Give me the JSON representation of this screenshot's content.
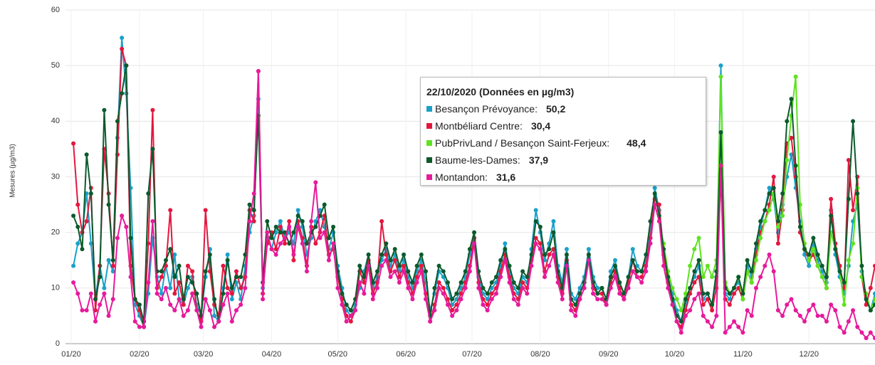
{
  "chart_data": {
    "type": "line",
    "y_label": "Mesures (µg/m3)",
    "xlim": [
      0,
      365
    ],
    "ylim": [
      0,
      60
    ],
    "grid": true,
    "xticks": [
      {
        "value": 0,
        "label": "01/20"
      },
      {
        "value": 31,
        "label": "02/20"
      },
      {
        "value": 60,
        "label": "03/20"
      },
      {
        "value": 91,
        "label": "04/20"
      },
      {
        "value": 121,
        "label": "05/20"
      },
      {
        "value": 152,
        "label": "06/20"
      },
      {
        "value": 182,
        "label": "07/20"
      },
      {
        "value": 213,
        "label": "08/20"
      },
      {
        "value": 244,
        "label": "09/20"
      },
      {
        "value": 274,
        "label": "10/20"
      },
      {
        "value": 305,
        "label": "11/20"
      },
      {
        "value": 335,
        "label": "12/20"
      }
    ],
    "yticks": [
      0,
      10,
      20,
      30,
      40,
      50,
      60
    ],
    "x": [
      1,
      3,
      5,
      7,
      9,
      11,
      13,
      15,
      17,
      19,
      21,
      23,
      25,
      27,
      29,
      31,
      33,
      35,
      37,
      39,
      41,
      43,
      45,
      47,
      49,
      51,
      53,
      55,
      57,
      59,
      61,
      63,
      65,
      67,
      69,
      71,
      73,
      75,
      77,
      79,
      81,
      83,
      85,
      87,
      89,
      91,
      93,
      95,
      97,
      99,
      101,
      103,
      105,
      107,
      109,
      111,
      113,
      115,
      117,
      119,
      121,
      123,
      125,
      127,
      129,
      131,
      133,
      135,
      137,
      139,
      141,
      143,
      145,
      147,
      149,
      151,
      153,
      155,
      157,
      159,
      161,
      163,
      165,
      167,
      169,
      171,
      173,
      175,
      177,
      179,
      181,
      183,
      185,
      187,
      189,
      191,
      193,
      195,
      197,
      199,
      201,
      203,
      205,
      207,
      209,
      211,
      213,
      215,
      217,
      219,
      221,
      223,
      225,
      227,
      229,
      231,
      233,
      235,
      237,
      239,
      241,
      243,
      245,
      247,
      249,
      251,
      253,
      255,
      257,
      259,
      261,
      263,
      265,
      267,
      269,
      271,
      273,
      275,
      277,
      279,
      281,
      283,
      285,
      287,
      289,
      291,
      293,
      295,
      297,
      299,
      301,
      303,
      305,
      307,
      309,
      311,
      313,
      315,
      317,
      319,
      321,
      323,
      325,
      327,
      329,
      331,
      333,
      335,
      337,
      339,
      341,
      343,
      345,
      347,
      349,
      351,
      353,
      355,
      357,
      359,
      361,
      363,
      365
    ],
    "series": [
      {
        "color": "#1aa1c9",
        "values": [
          14,
          18,
          20,
          27,
          18,
          8,
          14,
          10,
          15,
          13,
          37,
          55,
          45,
          28,
          7,
          5,
          3,
          9,
          19,
          12,
          9,
          14,
          10,
          16,
          8,
          7,
          10,
          12,
          7,
          5,
          12,
          17,
          5,
          4,
          10,
          16,
          8,
          11,
          8,
          14,
          20,
          23,
          44,
          10,
          19,
          17,
          20,
          22,
          19,
          20,
          18,
          24,
          21,
          16,
          19,
          22,
          24,
          21,
          17,
          20,
          14,
          10,
          6,
          5,
          7,
          10,
          13,
          16,
          10,
          12,
          15,
          17,
          14,
          16,
          13,
          15,
          12,
          10,
          13,
          15,
          11,
          6,
          9,
          13,
          12,
          10,
          7,
          8,
          10,
          12,
          16,
          19,
          12,
          9,
          8,
          10,
          11,
          14,
          18,
          13,
          10,
          9,
          12,
          11,
          17,
          24,
          20,
          15,
          18,
          22,
          14,
          11,
          17,
          9,
          8,
          10,
          12,
          17,
          12,
          10,
          10,
          8,
          13,
          15,
          11,
          9,
          12,
          17,
          14,
          13,
          15,
          20,
          28,
          24,
          17,
          12,
          9,
          6,
          4,
          7,
          10,
          12,
          14,
          8,
          9,
          7,
          12,
          50,
          9,
          8,
          10,
          11,
          9,
          14,
          12,
          17,
          21,
          24,
          28,
          26,
          20,
          25,
          30,
          34,
          28,
          22,
          16,
          14,
          18,
          15,
          13,
          11,
          24,
          16,
          12,
          9,
          14,
          22,
          25,
          13,
          8,
          6,
          9
        ]
      },
      {
        "color": "#e3173e",
        "values": [
          36,
          25,
          20,
          22,
          28,
          6,
          14,
          35,
          27,
          14,
          34,
          53,
          50,
          14,
          8,
          6,
          3,
          18,
          42,
          10,
          12,
          14,
          24,
          9,
          11,
          7,
          14,
          13,
          6,
          4,
          24,
          13,
          7,
          5,
          14,
          10,
          9,
          13,
          10,
          12,
          24,
          22,
          49,
          9,
          18,
          20,
          17,
          21,
          18,
          22,
          15,
          22,
          19,
          14,
          21,
          18,
          20,
          23,
          16,
          17,
          12,
          8,
          5,
          4,
          6,
          13,
          11,
          15,
          9,
          11,
          22,
          16,
          13,
          15,
          12,
          14,
          11,
          9,
          12,
          14,
          9,
          4,
          7,
          11,
          10,
          8,
          6,
          7,
          9,
          11,
          14,
          19,
          11,
          8,
          7,
          9,
          10,
          13,
          16,
          12,
          9,
          8,
          11,
          10,
          15,
          19,
          18,
          13,
          16,
          17,
          12,
          9,
          15,
          7,
          6,
          9,
          11,
          16,
          10,
          9,
          9,
          7,
          11,
          13,
          10,
          8,
          11,
          15,
          12,
          12,
          14,
          19,
          26,
          25,
          16,
          11,
          8,
          4,
          3,
          6,
          9,
          11,
          12,
          7,
          8,
          6,
          10,
          30,
          8,
          7,
          9,
          10,
          8,
          13,
          11,
          16,
          20,
          22,
          25,
          30,
          18,
          24,
          36,
          37,
          30,
          20,
          17,
          15,
          16,
          14,
          12,
          10,
          26,
          18,
          14,
          10,
          33,
          24,
          30,
          12,
          7,
          10,
          14
        ]
      },
      {
        "color": "#5ee31f",
        "x": [
          265,
          267,
          269,
          271,
          273,
          275,
          277,
          279,
          281,
          283,
          285,
          287,
          289,
          291,
          293,
          295,
          297,
          299,
          301,
          303,
          305,
          307,
          309,
          311,
          313,
          315,
          317,
          319,
          321,
          323,
          325,
          327,
          329,
          331,
          333,
          335,
          337,
          339,
          341,
          343,
          345,
          347,
          349,
          351,
          353,
          355,
          357,
          359,
          361,
          363,
          365
        ],
        "values": [
          25,
          22,
          18,
          13,
          10,
          8,
          6,
          9,
          14,
          17,
          19,
          12,
          14,
          12,
          15,
          48,
          11,
          9,
          10,
          12,
          8,
          13,
          11,
          15,
          19,
          22,
          24,
          27,
          21,
          23,
          33,
          41,
          48,
          25,
          18,
          15,
          17,
          14,
          12,
          10,
          20,
          17,
          13,
          7,
          15,
          18,
          28,
          12,
          9,
          6,
          8
        ]
      },
      {
        "color": "#0c5a2c",
        "values": [
          23,
          21,
          17,
          34,
          27,
          8,
          12,
          42,
          25,
          15,
          40,
          45,
          50,
          19,
          8,
          7,
          4,
          27,
          35,
          13,
          13,
          15,
          17,
          12,
          14,
          8,
          12,
          11,
          9,
          5,
          13,
          16,
          8,
          4,
          9,
          15,
          10,
          12,
          12,
          16,
          25,
          24,
          41,
          11,
          22,
          19,
          21,
          20,
          20,
          18,
          20,
          23,
          22,
          18,
          20,
          21,
          23,
          25,
          19,
          21,
          13,
          9,
          7,
          6,
          8,
          14,
          12,
          16,
          11,
          13,
          16,
          18,
          15,
          17,
          14,
          16,
          13,
          11,
          14,
          16,
          13,
          5,
          10,
          14,
          13,
          11,
          8,
          9,
          11,
          13,
          17,
          20,
          13,
          10,
          9,
          11,
          12,
          15,
          17,
          14,
          11,
          10,
          13,
          12,
          16,
          22,
          21,
          16,
          17,
          20,
          13,
          10,
          16,
          8,
          7,
          9,
          11,
          16,
          11,
          9,
          10,
          8,
          12,
          14,
          11,
          9,
          12,
          15,
          13,
          13,
          16,
          22,
          27,
          23,
          17,
          12,
          8,
          5,
          4,
          8,
          10,
          13,
          15,
          9,
          9,
          7,
          13,
          38,
          10,
          9,
          10,
          12,
          9,
          15,
          13,
          18,
          22,
          24,
          27,
          28,
          22,
          27,
          40,
          44,
          32,
          21,
          17,
          16,
          19,
          16,
          14,
          12,
          23,
          17,
          13,
          11,
          26,
          40,
          27,
          14,
          8,
          6,
          7
        ]
      },
      {
        "color": "#e61a9b",
        "values": [
          11,
          9,
          6,
          6,
          9,
          4,
          7,
          9,
          5,
          8,
          19,
          23,
          21,
          12,
          4,
          3,
          3,
          11,
          22,
          9,
          8,
          10,
          7,
          6,
          8,
          5,
          6,
          9,
          6,
          3,
          8,
          6,
          3,
          4,
          7,
          9,
          4,
          6,
          7,
          10,
          22,
          27,
          49,
          8,
          20,
          17,
          16,
          18,
          19,
          21,
          16,
          21,
          18,
          13,
          22,
          29,
          19,
          20,
          15,
          18,
          10,
          7,
          4,
          5,
          6,
          11,
          9,
          14,
          8,
          10,
          14,
          15,
          12,
          13,
          11,
          13,
          10,
          8,
          11,
          13,
          8,
          4,
          6,
          10,
          9,
          7,
          5,
          6,
          8,
          10,
          13,
          18,
          10,
          7,
          6,
          8,
          9,
          12,
          15,
          11,
          8,
          7,
          10,
          9,
          14,
          18,
          17,
          12,
          14,
          16,
          11,
          8,
          14,
          6,
          5,
          8,
          10,
          15,
          9,
          8,
          8,
          7,
          10,
          12,
          9,
          8,
          10,
          13,
          12,
          11,
          13,
          18,
          25,
          22,
          14,
          10,
          7,
          4,
          2,
          5,
          6,
          8,
          9,
          5,
          4,
          3,
          5,
          32,
          2,
          3,
          4,
          3,
          2,
          6,
          5,
          10,
          12,
          14,
          16,
          13,
          6,
          5,
          7,
          8,
          6,
          5,
          4,
          6,
          7,
          5,
          5,
          4,
          7,
          6,
          3,
          2,
          4,
          6,
          3,
          2,
          1,
          2,
          1
        ]
      }
    ],
    "tooltip": {
      "title": "22/10/2020 (Données en µg/m3)",
      "rows": [
        {
          "label": "Besançon Prévoyance:",
          "value_label": "50,2"
        },
        {
          "label": "Montbéliard Centre:",
          "value_label": "30,4"
        },
        {
          "label": "PubPrivLand / Besançon Saint-Ferjeux:",
          "value_label": "48,4"
        },
        {
          "label": "Baume-les-Dames:",
          "value_label": "37,9"
        },
        {
          "label": "Montandon:",
          "value_label": "31,6"
        }
      ]
    }
  }
}
